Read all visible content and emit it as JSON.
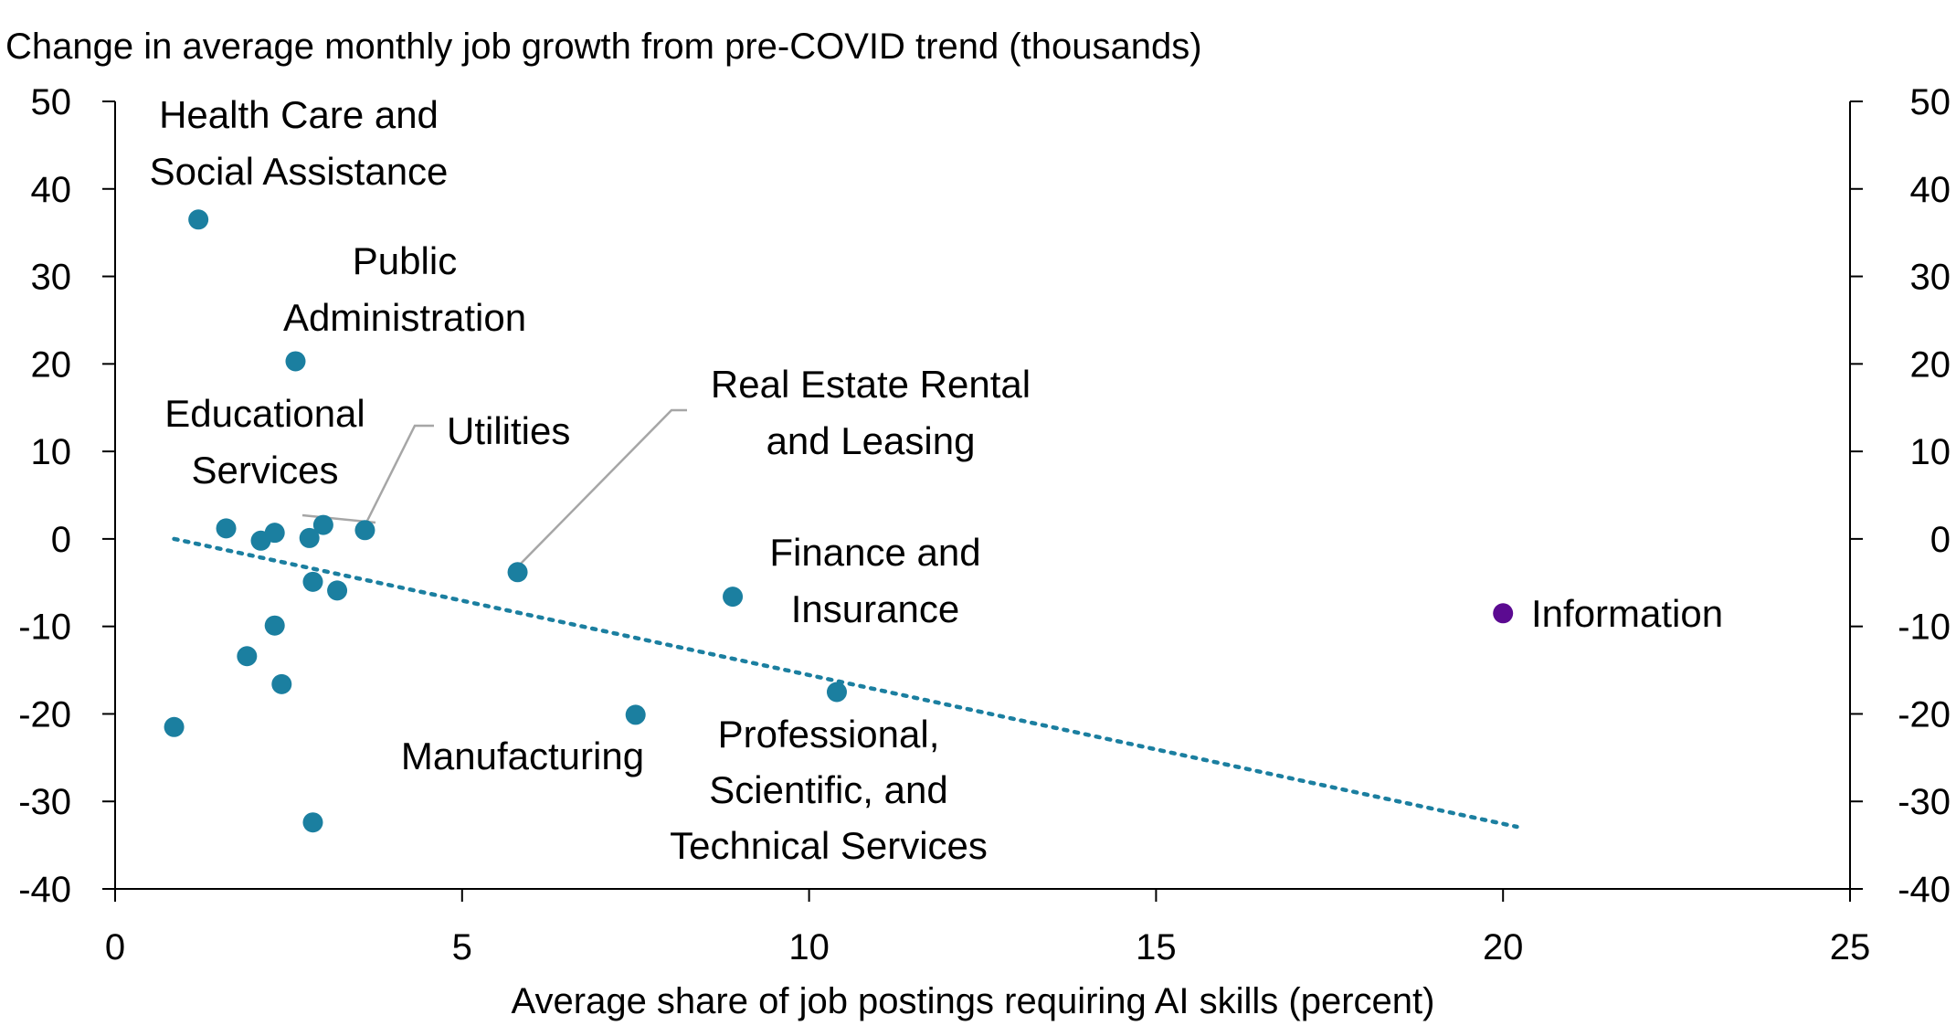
{
  "colors": {
    "point": "#1b7fa0",
    "highlight": "#5b0a91",
    "trend": "#1b7fa0",
    "leader": "#a6a6a6",
    "axis": "#000000"
  },
  "chart_data": {
    "type": "scatter",
    "title": "",
    "ylabel": "Change in average monthly job growth from pre-COVID trend (thousands)",
    "xlabel": "Average share of job postings requiring AI skills (percent)",
    "xlim": [
      0,
      25
    ],
    "ylim": [
      -40,
      50
    ],
    "x_ticks": [
      0,
      5,
      10,
      15,
      20,
      25
    ],
    "y_ticks": [
      50,
      40,
      30,
      20,
      10,
      0,
      -10,
      -20,
      -30,
      -40
    ],
    "grid": false,
    "legend": "none",
    "secondary_y_axis": true,
    "points": [
      {
        "x": 1.2,
        "y": 36.5,
        "label": "Health Care and Social Assistance"
      },
      {
        "x": 2.6,
        "y": 20.3,
        "label": "Public Administration"
      },
      {
        "x": 3.0,
        "y": 1.6,
        "label": "Educational Services"
      },
      {
        "x": 3.6,
        "y": 1.0,
        "label": "Utilities"
      },
      {
        "x": 5.8,
        "y": -3.8,
        "label": "Real Estate Rental and Leasing"
      },
      {
        "x": 8.9,
        "y": -6.6,
        "label": "Finance and Insurance"
      },
      {
        "x": 7.5,
        "y": -20.1,
        "label": "Manufacturing"
      },
      {
        "x": 10.4,
        "y": -17.5,
        "label": "Professional, Scientific, and Technical Services"
      },
      {
        "x": 20.0,
        "y": -8.5,
        "label": "Information",
        "highlight": true
      },
      {
        "x": 1.6,
        "y": 1.2
      },
      {
        "x": 2.1,
        "y": -0.2
      },
      {
        "x": 2.3,
        "y": 0.7
      },
      {
        "x": 2.8,
        "y": 0.1
      },
      {
        "x": 2.85,
        "y": -4.9
      },
      {
        "x": 3.2,
        "y": -5.9
      },
      {
        "x": 2.3,
        "y": -9.9
      },
      {
        "x": 1.9,
        "y": -13.4
      },
      {
        "x": 2.4,
        "y": -16.6
      },
      {
        "x": 0.85,
        "y": -21.5
      },
      {
        "x": 2.85,
        "y": -32.4
      }
    ],
    "trendline": {
      "style": "dotted",
      "x": [
        0.85,
        20.2
      ],
      "y": [
        0.0,
        -32.9
      ]
    },
    "annotations": [
      {
        "text": [
          "Health Care and",
          "Social Assistance"
        ]
      },
      {
        "text": [
          "Public",
          "Administration"
        ]
      },
      {
        "text": [
          "Educational",
          "Services"
        ]
      },
      {
        "text": [
          "Utilities"
        ]
      },
      {
        "text": [
          "Real Estate Rental",
          "and Leasing"
        ]
      },
      {
        "text": [
          "Finance and",
          "Insurance"
        ]
      },
      {
        "text": [
          "Information"
        ]
      },
      {
        "text": [
          "Manufacturing"
        ]
      },
      {
        "text": [
          "Professional,",
          "Scientific, and",
          "Technical Services"
        ]
      }
    ]
  }
}
